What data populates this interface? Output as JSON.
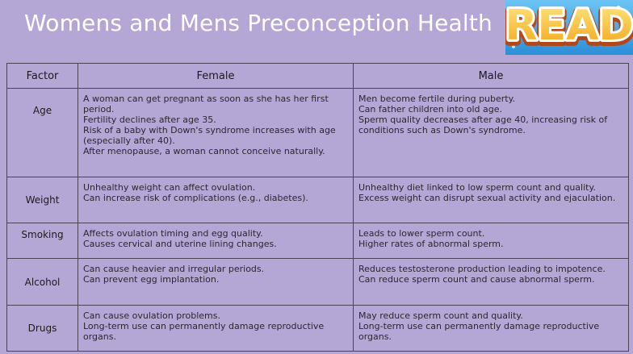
{
  "title": "Womens and Mens Preconception Health",
  "badge": {
    "text": "READ",
    "icon": "read-badge"
  },
  "table": {
    "headers": [
      "Factor",
      "Female",
      "Male"
    ],
    "rows": [
      {
        "factor": "Age",
        "female": [
          "A woman can get pregnant as soon as she has her first period.",
          "Fertility declines after age 35.",
          "Risk of a baby with Down's syndrome increases with age (especially after 40).",
          "After menopause, a woman cannot conceive naturally."
        ],
        "male": [
          "Men become fertile during puberty.",
          "Can father children into old age.",
          "Sperm quality decreases after age 40, increasing risk of conditions such as Down's syndrome."
        ]
      },
      {
        "factor": "Weight",
        "female": [
          "Unhealthy weight can affect ovulation.",
          "Can increase risk of complications (e.g., diabetes)."
        ],
        "male": [
          "Unhealthy diet linked to low sperm count and quality.",
          "Excess weight can disrupt sexual activity and ejaculation."
        ]
      },
      {
        "factor": "Smoking",
        "female": [
          "Affects ovulation timing and egg quality.",
          "Causes cervical and uterine lining changes."
        ],
        "male": [
          "Leads to lower sperm count.",
          "Higher rates of abnormal sperm."
        ]
      },
      {
        "factor": "Alcohol",
        "female": [
          "Can cause heavier and irregular periods.",
          "Can prevent egg implantation."
        ],
        "male": [
          "Reduces testosterone production leading to impotence.",
          "Can reduce sperm count and cause abnormal sperm."
        ]
      },
      {
        "factor": "Drugs",
        "female": [
          "Can cause ovulation problems.",
          "Long-term use can permanently damage reproductive organs."
        ],
        "male": [
          "May reduce sperm count and quality.",
          "Long-term use can permanently damage reproductive organs."
        ]
      }
    ]
  }
}
